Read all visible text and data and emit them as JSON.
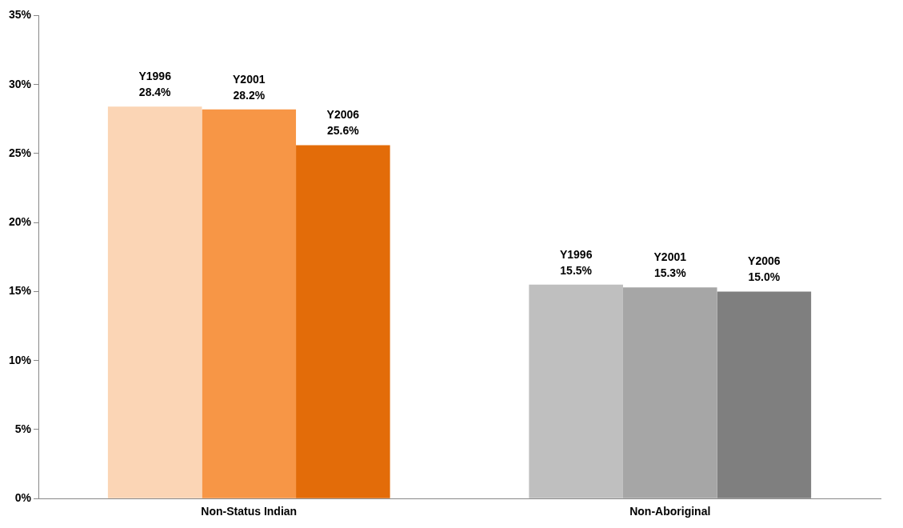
{
  "chart_data": {
    "type": "bar",
    "categories": [
      "Non-Status Indian",
      "Non-Aboriginal"
    ],
    "series": [
      {
        "name": "Y1996",
        "colors": [
          "#fbd5b5",
          "#bfbfbf"
        ],
        "values": [
          28.4,
          15.5
        ],
        "value_labels": [
          "28.4%",
          "15.5%"
        ]
      },
      {
        "name": "Y2001",
        "colors": [
          "#f79646",
          "#a6a6a6"
        ],
        "values": [
          28.2,
          15.3
        ],
        "value_labels": [
          "28.2%",
          "15.3%"
        ]
      },
      {
        "name": "Y2006",
        "colors": [
          "#e36c09",
          "#7f7f7f"
        ],
        "values": [
          25.6,
          15.0
        ],
        "value_labels": [
          "25.6%",
          "15.0%"
        ]
      }
    ],
    "ylim": [
      0,
      35
    ],
    "yticks": [
      {
        "value": 0,
        "label": "0%"
      },
      {
        "value": 5,
        "label": "5%"
      },
      {
        "value": 10,
        "label": "10%"
      },
      {
        "value": 15,
        "label": "15%"
      },
      {
        "value": 20,
        "label": "20%"
      },
      {
        "value": 25,
        "label": "25%"
      },
      {
        "value": 30,
        "label": "30%"
      },
      {
        "value": 35,
        "label": "35%"
      }
    ],
    "grid": false,
    "legend": false
  }
}
